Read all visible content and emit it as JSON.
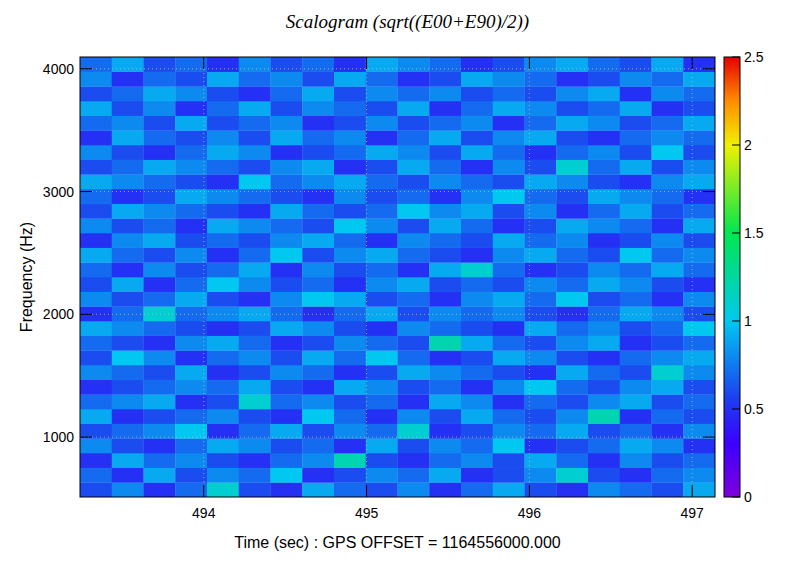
{
  "chart_data": {
    "type": "heatmap",
    "title": "Scalogram (sqrt((E00+E90)/2))",
    "x_label": "Time (sec) : GPS OFFSET = 1164556000.000",
    "y_label": "Frequency (Hz)",
    "xlim": [
      493.24,
      497.14
    ],
    "xticks": [
      494,
      495,
      496,
      497
    ],
    "ylim": [
      512,
      4096
    ],
    "yticks": [
      1000,
      2000,
      3000,
      4000
    ],
    "grid": true,
    "colorbar": {
      "range": [
        0,
        2.5
      ],
      "ticks": [
        0,
        0.5,
        1,
        1.5,
        2,
        2.5
      ]
    },
    "cells": [
      [
        0.6,
        0.8,
        0.5,
        0.7,
        1.1,
        0.6,
        0.5,
        0.9,
        0.7,
        0.6,
        0.8,
        0.5,
        0.7,
        0.9,
        0.6,
        0.5,
        0.8,
        0.7,
        0.6,
        0.9
      ],
      [
        0.7,
        0.5,
        0.9,
        0.6,
        0.8,
        0.7,
        1.0,
        0.5,
        0.6,
        0.8,
        0.7,
        0.9,
        0.5,
        0.6,
        0.8,
        1.1,
        0.6,
        0.5,
        0.7,
        0.8
      ],
      [
        0.5,
        0.9,
        0.7,
        0.8,
        0.6,
        0.5,
        0.7,
        0.8,
        1.2,
        0.6,
        0.5,
        0.7,
        0.8,
        0.6,
        0.9,
        0.7,
        0.5,
        0.8,
        0.6,
        0.7
      ],
      [
        0.8,
        0.6,
        0.5,
        0.7,
        0.9,
        0.8,
        0.6,
        0.7,
        0.5,
        0.9,
        0.6,
        0.8,
        0.7,
        1.0,
        0.5,
        0.6,
        0.7,
        0.9,
        0.8,
        0.5
      ],
      [
        0.6,
        0.7,
        0.8,
        1.0,
        0.5,
        0.7,
        0.9,
        0.6,
        0.8,
        0.7,
        1.1,
        0.5,
        0.6,
        0.8,
        0.7,
        0.9,
        0.6,
        0.7,
        0.5,
        0.8
      ],
      [
        0.9,
        0.5,
        0.6,
        0.7,
        0.8,
        0.6,
        0.5,
        1.0,
        0.7,
        0.5,
        0.8,
        0.6,
        0.9,
        0.7,
        0.6,
        0.8,
        1.2,
        0.5,
        0.7,
        0.6
      ],
      [
        0.7,
        0.8,
        0.9,
        0.5,
        0.6,
        1.1,
        0.7,
        0.8,
        0.6,
        0.7,
        0.5,
        0.9,
        0.8,
        0.5,
        0.7,
        0.6,
        0.8,
        0.9,
        0.6,
        0.7
      ],
      [
        0.5,
        0.6,
        0.7,
        0.8,
        0.7,
        0.9,
        0.6,
        0.5,
        0.9,
        0.8,
        0.6,
        0.7,
        0.5,
        0.8,
        1.0,
        0.7,
        0.6,
        0.8,
        0.9,
        0.6
      ],
      [
        0.8,
        0.7,
        0.6,
        0.9,
        0.5,
        0.6,
        0.8,
        0.7,
        0.5,
        0.6,
        0.9,
        0.8,
        0.7,
        0.6,
        0.5,
        0.9,
        0.7,
        0.6,
        1.1,
        0.8
      ],
      [
        0.6,
        1.0,
        0.8,
        0.5,
        0.7,
        0.8,
        0.6,
        0.9,
        0.7,
        1.0,
        0.7,
        0.5,
        0.6,
        0.9,
        0.8,
        0.6,
        0.5,
        0.7,
        0.8,
        0.9
      ],
      [
        0.7,
        0.6,
        0.5,
        0.8,
        0.9,
        0.7,
        0.5,
        0.6,
        0.8,
        0.7,
        0.6,
        1.2,
        0.9,
        0.7,
        0.6,
        0.8,
        0.9,
        0.5,
        0.6,
        0.7
      ],
      [
        0.9,
        0.8,
        0.7,
        0.6,
        0.5,
        0.6,
        0.9,
        0.8,
        0.6,
        0.5,
        0.8,
        0.7,
        0.6,
        0.5,
        0.9,
        0.7,
        0.8,
        0.6,
        0.7,
        1.0
      ],
      [
        0.5,
        0.7,
        1.1,
        0.7,
        0.8,
        0.9,
        0.7,
        0.5,
        0.7,
        0.9,
        0.6,
        0.8,
        0.7,
        0.8,
        0.6,
        0.5,
        0.7,
        0.9,
        0.8,
        0.6
      ],
      [
        0.8,
        0.6,
        0.7,
        0.9,
        0.6,
        0.5,
        0.8,
        1.0,
        0.9,
        0.6,
        0.7,
        0.5,
        0.8,
        0.9,
        0.7,
        1.0,
        0.6,
        0.7,
        0.5,
        0.8
      ],
      [
        0.6,
        0.9,
        0.5,
        0.7,
        1.0,
        0.8,
        0.6,
        0.7,
        0.5,
        0.8,
        0.9,
        0.6,
        0.7,
        0.6,
        0.8,
        0.7,
        0.9,
        0.8,
        0.6,
        0.5
      ],
      [
        0.7,
        0.5,
        0.8,
        0.6,
        0.7,
        0.9,
        0.5,
        0.8,
        0.6,
        0.7,
        0.5,
        0.9,
        1.1,
        0.7,
        0.5,
        0.6,
        0.8,
        0.7,
        0.9,
        0.7
      ],
      [
        0.9,
        0.7,
        0.6,
        0.8,
        0.5,
        0.7,
        1.0,
        0.6,
        0.8,
        0.9,
        0.7,
        0.6,
        0.5,
        0.8,
        0.9,
        0.7,
        0.6,
        1.0,
        0.7,
        0.8
      ],
      [
        0.5,
        0.8,
        0.9,
        0.6,
        0.7,
        0.6,
        0.8,
        0.9,
        0.7,
        0.5,
        0.8,
        0.7,
        0.6,
        0.9,
        0.7,
        0.8,
        0.5,
        0.6,
        0.8,
        0.6
      ],
      [
        0.8,
        0.6,
        0.7,
        0.5,
        0.9,
        0.8,
        0.7,
        0.6,
        1.0,
        0.8,
        0.6,
        0.9,
        0.7,
        0.5,
        0.6,
        0.9,
        0.8,
        0.7,
        0.5,
        0.9
      ],
      [
        0.6,
        0.9,
        0.8,
        0.7,
        0.6,
        0.5,
        0.9,
        0.7,
        0.6,
        0.7,
        1.0,
        0.8,
        0.9,
        0.6,
        0.8,
        0.5,
        0.7,
        0.9,
        0.6,
        0.7
      ],
      [
        0.7,
        0.5,
        0.6,
        0.9,
        0.8,
        0.7,
        0.6,
        0.5,
        0.8,
        0.6,
        0.7,
        0.5,
        0.8,
        1.0,
        0.7,
        0.6,
        0.9,
        0.8,
        0.7,
        0.5
      ],
      [
        0.9,
        0.8,
        0.7,
        0.6,
        0.5,
        1.0,
        0.7,
        0.8,
        0.9,
        0.7,
        0.6,
        0.8,
        0.7,
        0.6,
        0.9,
        0.8,
        0.6,
        0.5,
        0.8,
        0.9
      ],
      [
        0.6,
        0.7,
        0.9,
        0.8,
        0.7,
        0.6,
        0.8,
        0.9,
        0.5,
        0.6,
        0.9,
        0.7,
        0.5,
        0.8,
        0.6,
        1.1,
        0.7,
        0.9,
        0.6,
        0.8
      ],
      [
        0.8,
        0.6,
        0.5,
        0.7,
        0.9,
        0.8,
        0.5,
        0.6,
        0.7,
        0.9,
        0.8,
        0.6,
        0.9,
        0.7,
        0.5,
        0.7,
        0.8,
        0.6,
        1.0,
        0.6
      ],
      [
        0.5,
        0.9,
        0.7,
        0.6,
        0.8,
        0.6,
        0.9,
        0.7,
        0.8,
        0.5,
        0.7,
        0.9,
        0.6,
        0.8,
        0.9,
        0.6,
        0.5,
        0.7,
        0.8,
        0.7
      ],
      [
        0.7,
        0.8,
        0.6,
        0.9,
        0.6,
        0.7,
        0.8,
        0.5,
        0.6,
        0.8,
        0.6,
        0.7,
        0.8,
        0.5,
        0.7,
        0.9,
        0.8,
        0.6,
        0.7,
        0.9
      ],
      [
        0.9,
        0.6,
        0.8,
        0.5,
        0.7,
        0.9,
        0.6,
        0.8,
        0.7,
        0.6,
        0.9,
        0.5,
        0.7,
        0.9,
        0.8,
        0.6,
        0.7,
        0.9,
        0.5,
        0.6
      ],
      [
        0.6,
        0.7,
        0.9,
        0.8,
        0.6,
        0.5,
        0.7,
        0.9,
        0.6,
        0.8,
        0.7,
        0.8,
        0.6,
        0.7,
        0.6,
        0.8,
        0.9,
        0.5,
        0.8,
        0.7
      ],
      [
        0.8,
        0.5,
        0.7,
        0.6,
        0.9,
        0.7,
        0.8,
        0.6,
        0.9,
        0.7,
        0.5,
        0.6,
        0.9,
        0.8,
        0.7,
        0.5,
        0.6,
        0.8,
        0.7,
        0.9
      ],
      [
        0.7,
        0.9,
        0.6,
        0.7,
        0.5,
        0.8,
        0.6,
        0.7,
        0.5,
        0.9,
        0.8,
        0.7,
        0.5,
        0.6,
        0.8,
        0.9,
        0.7,
        0.6,
        0.9,
        0.5
      ]
    ]
  }
}
